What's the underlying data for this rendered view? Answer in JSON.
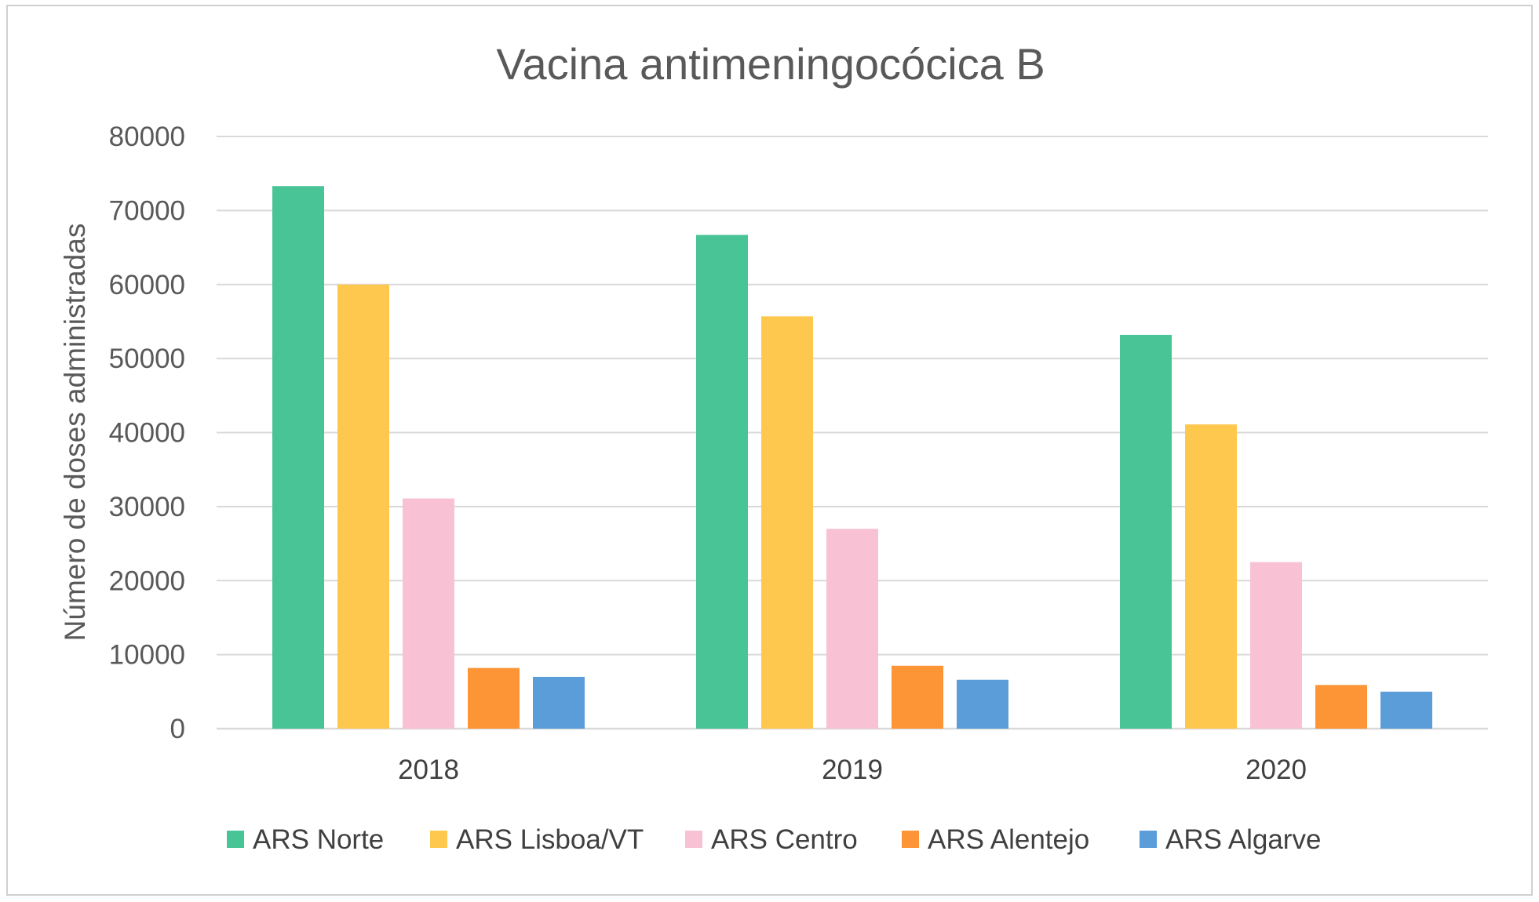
{
  "chart_data": {
    "type": "bar",
    "title": "Vacina antimeningocócica B",
    "xlabel": "",
    "ylabel": "Número de doses administradas",
    "ylim": [
      0,
      80000
    ],
    "yticks": [
      0,
      10000,
      20000,
      30000,
      40000,
      50000,
      60000,
      70000,
      80000
    ],
    "ytick_labels": [
      "0",
      "10000",
      "20000",
      "30000",
      "40000",
      "50000",
      "60000",
      "70000",
      "80000"
    ],
    "categories": [
      "2018",
      "2019",
      "2020"
    ],
    "series": [
      {
        "name": "ARS Norte",
        "color": "#48c496",
        "values": [
          73300,
          66700,
          53200
        ]
      },
      {
        "name": "ARS Lisboa/VT",
        "color": "#fec84e",
        "values": [
          60000,
          55700,
          41100
        ]
      },
      {
        "name": "ARS Centro",
        "color": "#f8c2d4",
        "values": [
          31100,
          27000,
          22500
        ]
      },
      {
        "name": "ARS Alentejo",
        "color": "#fd9537",
        "values": [
          8200,
          8500,
          5900
        ]
      },
      {
        "name": "ARS Algarve",
        "color": "#5b9dd9",
        "values": [
          7000,
          6600,
          5000
        ]
      }
    ],
    "grid": true,
    "legend_position": "bottom"
  }
}
